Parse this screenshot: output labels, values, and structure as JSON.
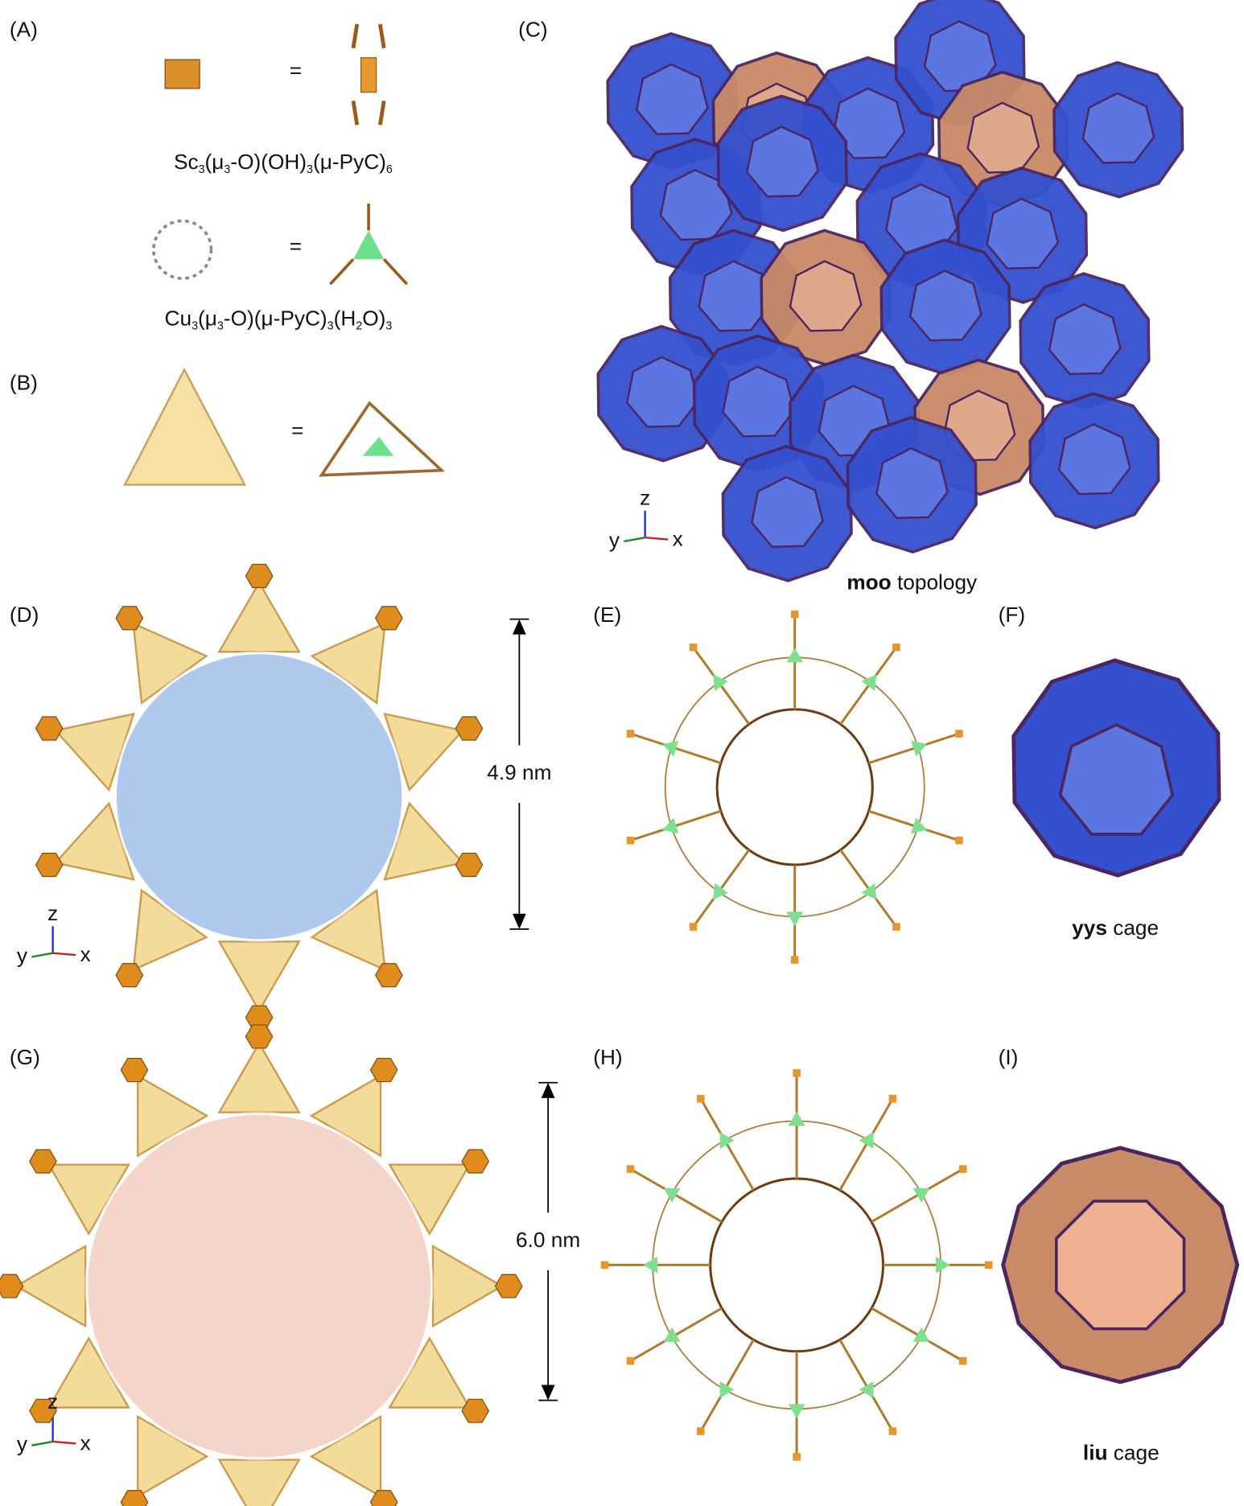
{
  "panels": {
    "A": "(A)",
    "B": "(B)",
    "C": "(C)",
    "D": "(D)",
    "E": "(E)",
    "F": "(F)",
    "G": "(G)",
    "H": "(H)",
    "I": "(I)"
  },
  "equals": [
    "=",
    "=",
    "="
  ],
  "formula_sc": [
    "Sc",
    "3",
    "(μ",
    "3",
    "-O)(OH)",
    "3",
    "(μ-PyC)",
    "6"
  ],
  "formula_cu": [
    "Cu",
    "3",
    "(μ",
    "3",
    "-O)(μ-PyC)",
    "3",
    "(H",
    "2",
    "O)",
    "3"
  ],
  "topology": {
    "bold": "moo",
    "text": " topology"
  },
  "cage_f": {
    "bold": "yys",
    "text": " cage"
  },
  "cage_i": {
    "bold": "liu",
    "text": " cage"
  },
  "size_d": "4.9 nm",
  "size_g": "6.0 nm",
  "axes_c": {
    "z": "z",
    "y": "y",
    "x": "x"
  },
  "axes_d": {
    "z": "z",
    "y": "y",
    "x": "x"
  },
  "axes_g": {
    "z": "z",
    "y": "y",
    "x": "x"
  }
}
